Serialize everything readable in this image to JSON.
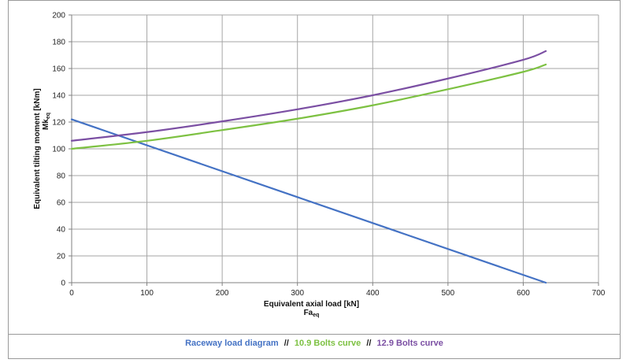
{
  "chart_data": {
    "type": "line",
    "xlabel": "Equivalent axial load [kN]",
    "xlabel_sub_main": "Fa",
    "xlabel_sub_script": "eq",
    "ylabel": "Equivalent tilting moment [kNm]",
    "ylabel_sub_main": "Mk",
    "ylabel_sub_script": "eq",
    "xlim": [
      0,
      700
    ],
    "ylim": [
      0,
      200
    ],
    "xticks": [
      0,
      100,
      200,
      300,
      400,
      500,
      600,
      700
    ],
    "yticks": [
      0,
      20,
      40,
      60,
      80,
      100,
      120,
      140,
      160,
      180,
      200
    ],
    "grid": true,
    "legend_position": "bottom",
    "series": [
      {
        "name": "Raceway load diagram",
        "color": "#4472c4",
        "x": [
          0,
          630
        ],
        "y": [
          122,
          0
        ]
      },
      {
        "name": "10.9 Bolts curve",
        "color": "#7dc142",
        "x": [
          0,
          100,
          200,
          300,
          400,
          500,
          600,
          630
        ],
        "y": [
          100,
          106,
          114,
          122.5,
          132.5,
          144.5,
          157.5,
          163
        ]
      },
      {
        "name": "12.9 Bolts curve",
        "color": "#7b4fa3",
        "x": [
          0,
          100,
          200,
          300,
          400,
          500,
          600,
          630
        ],
        "y": [
          106,
          112.5,
          120.5,
          129.5,
          140,
          152.5,
          166.5,
          173
        ]
      }
    ],
    "legend_separator": "//"
  }
}
